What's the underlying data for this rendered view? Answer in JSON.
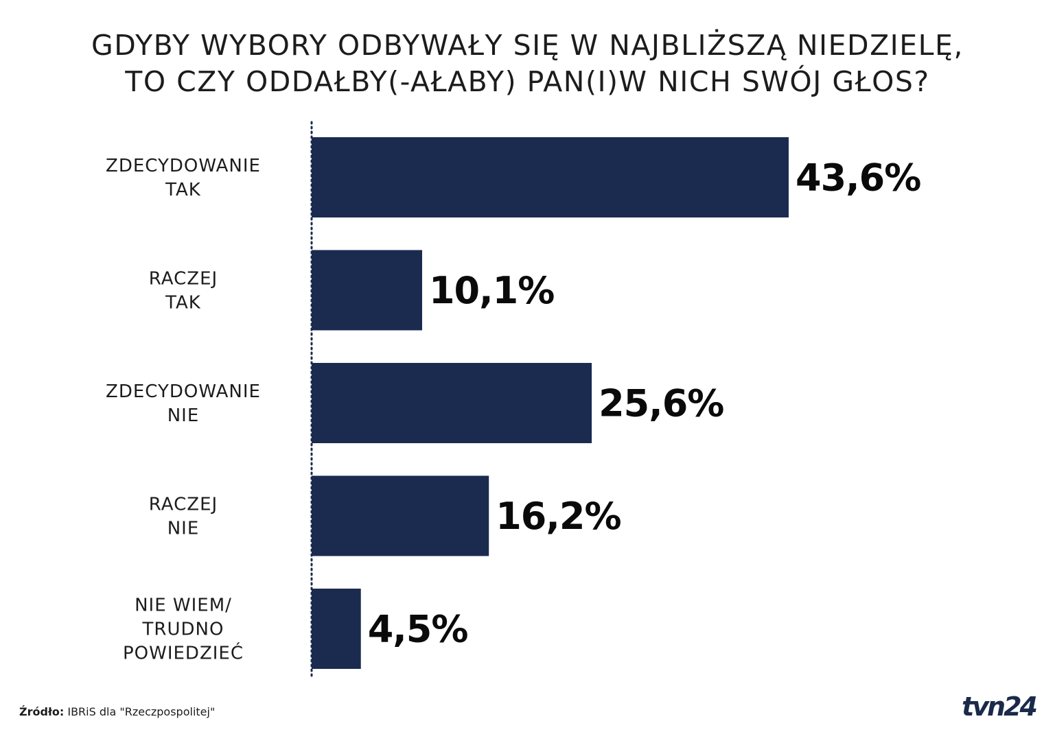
{
  "title": {
    "line1": "GDYBY WYBORY ODBYWAŁY SIĘ W NAJBLIŻSZĄ NIEDZIELĘ,",
    "line2": "TO CZY ODDAŁBY(-AŁABY) PAN(I)W NICH SWÓJ GŁOS?"
  },
  "colors": {
    "bar": "#1a2b4f",
    "axis": "#1a2b4f"
  },
  "chart_data": {
    "type": "bar",
    "orientation": "horizontal",
    "categories": [
      [
        "ZDECYDOWANIE",
        "TAK"
      ],
      [
        "RACZEJ",
        "TAK"
      ],
      [
        "ZDECYDOWANIE",
        "NIE"
      ],
      [
        "RACZEJ",
        "NIE"
      ],
      [
        "NIE WIEM/",
        "TRUDNO",
        "POWIEDZIEĆ"
      ]
    ],
    "values": [
      43.6,
      10.1,
      25.6,
      16.2,
      4.5
    ],
    "value_labels": [
      "43,6%",
      "10,1%",
      "25,6%",
      "16,2%",
      "4,5%"
    ],
    "xlim": [
      0,
      43.6
    ],
    "grid": false,
    "legend": "none"
  },
  "footer": {
    "source_label": "Źródło:",
    "source_text": "IBRiS dla \"Rzeczpospolitej\""
  },
  "logo": {
    "text": "tvn24"
  }
}
